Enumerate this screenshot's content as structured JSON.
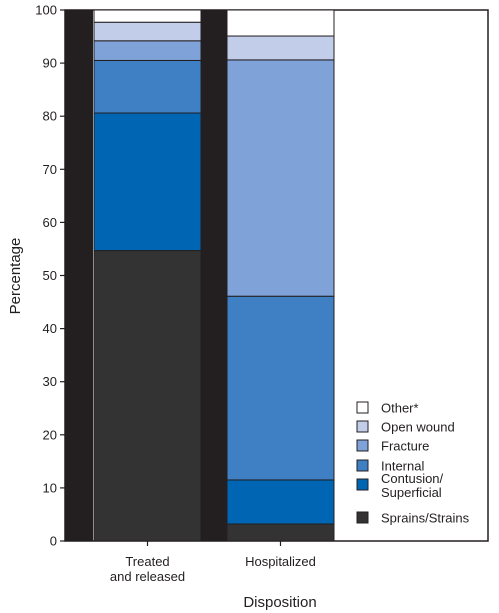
{
  "chart_data": {
    "type": "bar",
    "stacked": true,
    "title": "",
    "xlabel": "Disposition",
    "ylabel": "Percentage",
    "ylim": [
      0,
      100
    ],
    "yticks": [
      0,
      10,
      20,
      30,
      40,
      50,
      60,
      70,
      80,
      90,
      100
    ],
    "grid": false,
    "legend_position": "bottom-right",
    "categories": [
      {
        "lines": [
          "Treated",
          "and released"
        ]
      },
      {
        "lines": [
          "Hospitalized"
        ]
      }
    ],
    "series": [
      {
        "name": "Sprains/Strains",
        "legend_lines": [
          "Sprains/Strains"
        ],
        "color": "#333333",
        "values": [
          54.7,
          3.2
        ]
      },
      {
        "name": "Contusion/ Superficial",
        "legend_lines": [
          "Contusion/",
          "Superficial"
        ],
        "color": "#0066b3",
        "values": [
          25.9,
          8.3
        ]
      },
      {
        "name": "Internal",
        "legend_lines": [
          "Internal"
        ],
        "color": "#3f7fc4",
        "values": [
          9.9,
          34.6
        ]
      },
      {
        "name": "Fracture",
        "legend_lines": [
          "Fracture"
        ],
        "color": "#7fa3d8",
        "values": [
          3.7,
          44.5
        ]
      },
      {
        "name": "Open wound",
        "legend_lines": [
          "Open wound"
        ],
        "color": "#c2cdea",
        "values": [
          3.5,
          4.5
        ]
      },
      {
        "name": "Other*",
        "legend_lines": [
          "Other*"
        ],
        "color": "#ffffff",
        "values": [
          2.3,
          4.9
        ]
      }
    ]
  }
}
